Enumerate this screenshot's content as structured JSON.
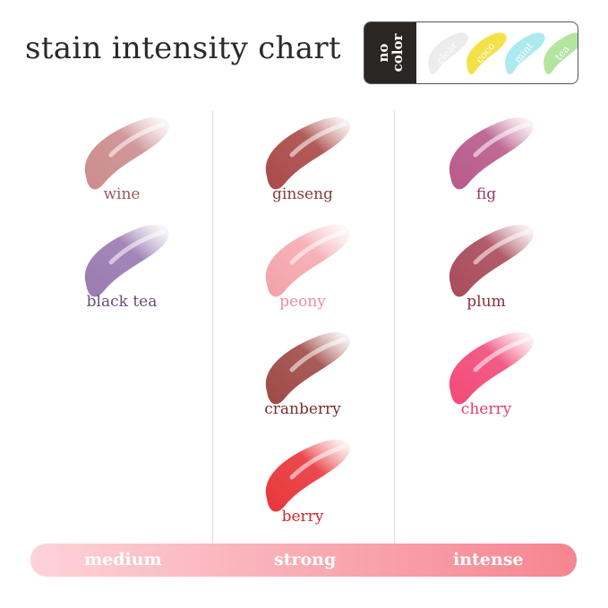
{
  "title": "stain intensity chart",
  "no_color": {
    "label": "no color",
    "shades": [
      {
        "name": "clear",
        "color": "#e9e9ea"
      },
      {
        "name": "coco",
        "color": "#f2dc2a"
      },
      {
        "name": "mint",
        "color": "#9fe6ea"
      },
      {
        "name": "tea",
        "color": "#a6e08e"
      }
    ]
  },
  "columns": [
    {
      "level": "medium",
      "shades": [
        {
          "name": "wine",
          "color": "#cc8c8e",
          "label_color": "#a05a5e"
        },
        {
          "name": "black tea",
          "color": "#9a7ab2",
          "label_color": "#6a4a7a"
        }
      ]
    },
    {
      "level": "strong",
      "shades": [
        {
          "name": "ginseng",
          "color": "#a94a48",
          "label_color": "#8a3a3a"
        },
        {
          "name": "peony",
          "color": "#f4a0a8",
          "label_color": "#f08c9a"
        },
        {
          "name": "cranberry",
          "color": "#9e4a46",
          "label_color": "#7a2e2e"
        },
        {
          "name": "berry",
          "color": "#e8363a",
          "label_color": "#d0282c"
        }
      ]
    },
    {
      "level": "intense",
      "shades": [
        {
          "name": "fig",
          "color": "#b85a8a",
          "label_color": "#9a3a6a"
        },
        {
          "name": "plum",
          "color": "#a94a5a",
          "label_color": "#8a2e3c"
        },
        {
          "name": "cherry",
          "color": "#f24a78",
          "label_color": "#e0406a"
        }
      ]
    }
  ],
  "scale": [
    "medium",
    "strong",
    "intense"
  ]
}
